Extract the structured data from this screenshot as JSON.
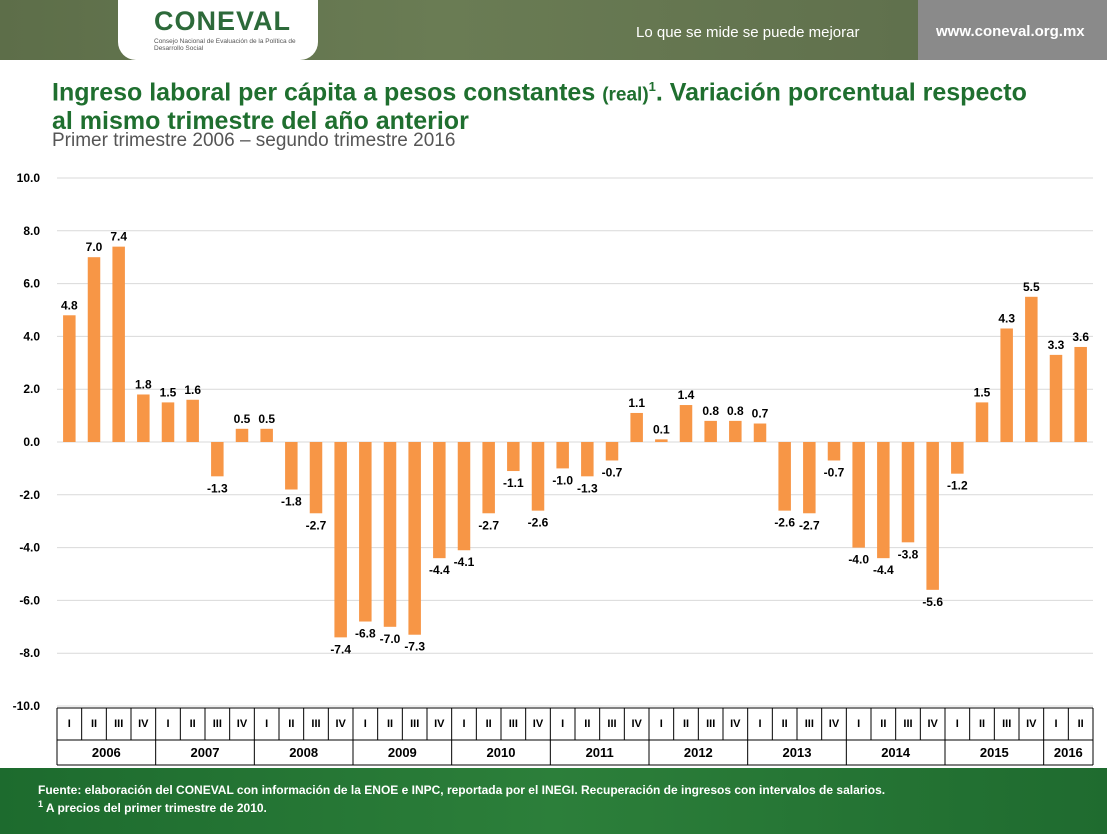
{
  "header": {
    "logo_text": "CONEVAL",
    "logo_sub": "Consejo Nacional de Evaluación de la Política de Desarrollo Social",
    "tagline": "Lo que se mide se puede mejorar",
    "url": "www.coneval.org.mx"
  },
  "titles": {
    "title_a": "Ingreso laboral per cápita a pesos constantes ",
    "title_small": "(real)",
    "title_sup": "1",
    "title_b": ". Variación porcentual respecto al mismo trimestre del año anterior",
    "subtitle": "Primer trimestre 2006 – segundo trimestre 2016"
  },
  "footer": {
    "note1": "Fuente: elaboración del CONEVAL con información de la ENOE e INPC, reportada por el INEGI. Recuperación de ingresos con intervalos de salarios.",
    "note2_sup": "1",
    "note2": " A precios del primer trimestre de 2010."
  },
  "colors": {
    "bar": "#f79646",
    "grid": "#d9d9d9",
    "header_green": "#5d6e49",
    "footer_green": "#1f6f2f",
    "title_green": "#1f6f2f"
  },
  "chart_data": {
    "type": "bar",
    "ylim": [
      -10,
      10
    ],
    "yticks": [
      "10.0",
      "8.0",
      "6.0",
      "4.0",
      "2.0",
      "0.0",
      "-2.0",
      "-4.0",
      "-6.0",
      "-8.0",
      "-10.0"
    ],
    "ytick_values": [
      10,
      8,
      6,
      4,
      2,
      0,
      -2,
      -4,
      -6,
      -8,
      -10
    ],
    "grid": true,
    "years": [
      {
        "label": "2006",
        "quarters": [
          "I",
          "II",
          "III",
          "IV"
        ]
      },
      {
        "label": "2007",
        "quarters": [
          "I",
          "II",
          "III",
          "IV"
        ]
      },
      {
        "label": "2008",
        "quarters": [
          "I",
          "II",
          "III",
          "IV"
        ]
      },
      {
        "label": "2009",
        "quarters": [
          "I",
          "II",
          "III",
          "IV"
        ]
      },
      {
        "label": "2010",
        "quarters": [
          "I",
          "II",
          "III",
          "IV"
        ]
      },
      {
        "label": "2011",
        "quarters": [
          "I",
          "II",
          "III",
          "IV"
        ]
      },
      {
        "label": "2012",
        "quarters": [
          "I",
          "II",
          "III",
          "IV"
        ]
      },
      {
        "label": "2013",
        "quarters": [
          "I",
          "II",
          "III",
          "IV"
        ]
      },
      {
        "label": "2014",
        "quarters": [
          "I",
          "II",
          "III",
          "IV"
        ]
      },
      {
        "label": "2015",
        "quarters": [
          "I",
          "II",
          "III",
          "IV"
        ]
      },
      {
        "label": "2016",
        "quarters": [
          "I",
          "II"
        ]
      }
    ],
    "values": [
      4.8,
      7.0,
      7.4,
      1.8,
      1.5,
      1.6,
      -1.3,
      0.5,
      0.5,
      -1.8,
      -2.7,
      -7.4,
      -6.8,
      -7.0,
      -7.3,
      -4.4,
      -4.1,
      -2.7,
      -1.1,
      -2.6,
      -1.0,
      -1.3,
      -0.7,
      1.1,
      0.1,
      1.4,
      0.8,
      0.8,
      0.7,
      -2.6,
      -2.7,
      -0.7,
      -4.0,
      -4.4,
      -3.8,
      -5.6,
      -1.2,
      1.5,
      4.3,
      5.5,
      3.3,
      3.6
    ],
    "labels": [
      "4.8",
      "7.0",
      "7.4",
      "1.8",
      "1.5",
      "1.6",
      "-1.3",
      "0.5",
      "0.5",
      "-1.8",
      "-2.7",
      "-7.4",
      "-6.8",
      "-7.0",
      "-7.3",
      "-4.4",
      "-4.1",
      "-2.7",
      "-1.1",
      "-2.6",
      "-1.0",
      "-1.3",
      "-0.7",
      "1.1",
      "0.1",
      "1.4",
      "0.8",
      "0.8",
      "0.7",
      "-2.6",
      "-2.7",
      "-0.7",
      "-4.0",
      "-4.4",
      "-3.8",
      "-5.6",
      "-1.2",
      "1.5",
      "4.3",
      "5.5",
      "3.3",
      "3.6"
    ]
  }
}
